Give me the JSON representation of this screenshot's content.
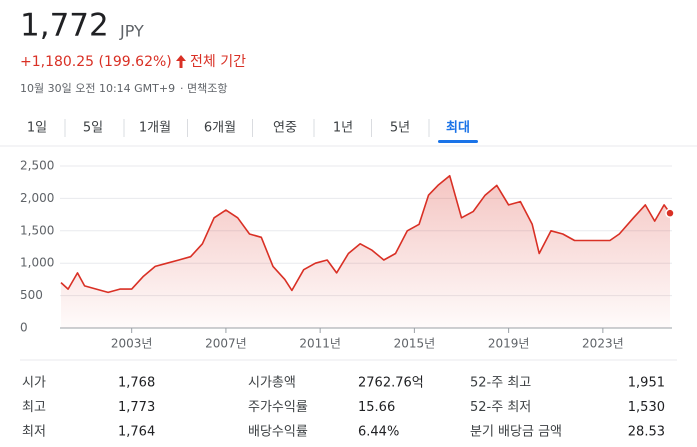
{
  "header": {
    "price": "1,772",
    "currency": "JPY",
    "change": "+1,180.25 (199.62%)",
    "period": "전체 기간",
    "timestamp": "10월 30일 오전 10:14 GMT+9",
    "disclaimer": "· 면책조항"
  },
  "tabs": {
    "items": [
      "1일",
      "5일",
      "1개월",
      "6개월",
      "연중",
      "1년",
      "5년",
      "최대"
    ],
    "selected": 7
  },
  "chart_data": {
    "type": "line",
    "color": "#d93025",
    "grid": true,
    "x": [
      2000.0,
      2000.3,
      2000.7,
      2001.0,
      2001.5,
      2002.0,
      2002.5,
      2003.0,
      2003.5,
      2004.0,
      2004.5,
      2005.0,
      2005.5,
      2006.0,
      2006.5,
      2007.0,
      2007.5,
      2008.0,
      2008.5,
      2009.0,
      2009.5,
      2009.8,
      2010.3,
      2010.8,
      2011.3,
      2011.7,
      2012.2,
      2012.7,
      2013.2,
      2013.7,
      2014.2,
      2014.7,
      2015.2,
      2015.6,
      2016.0,
      2016.5,
      2017.0,
      2017.5,
      2018.0,
      2018.5,
      2019.0,
      2019.5,
      2020.0,
      2020.3,
      2020.8,
      2021.3,
      2021.8,
      2022.3,
      2022.8,
      2023.3,
      2023.7,
      2024.3,
      2024.8,
      2025.2,
      2025.6,
      2025.85
    ],
    "values": [
      700,
      600,
      850,
      650,
      600,
      550,
      600,
      600,
      800,
      950,
      1000,
      1050,
      1100,
      1300,
      1700,
      1820,
      1700,
      1450,
      1400,
      950,
      750,
      580,
      900,
      1000,
      1050,
      850,
      1150,
      1300,
      1200,
      1050,
      1150,
      1500,
      1600,
      2050,
      2200,
      2350,
      1700,
      1800,
      2050,
      2200,
      1900,
      1950,
      1600,
      1150,
      1500,
      1450,
      1350,
      1350,
      1350,
      1350,
      1450,
      1700,
      1900,
      1650,
      1900,
      1772
    ],
    "xlim": [
      2000,
      2025.85
    ],
    "ylim": [
      0,
      2500
    ],
    "yticks": [
      0,
      500,
      {
        "value": 1000,
        "label": "1,000"
      },
      {
        "value": 1500,
        "label": "1,500"
      },
      {
        "value": 2000,
        "label": "2,000"
      },
      {
        "value": 2500,
        "label": "2,500"
      }
    ],
    "xticks": [
      {
        "value": 2003,
        "label": "2003년"
      },
      {
        "value": 2007,
        "label": "2007년"
      },
      {
        "value": 2011,
        "label": "2011년"
      },
      {
        "value": 2015,
        "label": "2015년"
      },
      {
        "value": 2019,
        "label": "2019년"
      },
      {
        "value": 2023,
        "label": "2023년"
      }
    ]
  },
  "stats": {
    "rows": [
      [
        "시가",
        "1,768",
        "시가총액",
        "2762.76억",
        "52-주 최고",
        "1,951"
      ],
      [
        "최고",
        "1,773",
        "주가수익률",
        "15.66",
        "52-주 최저",
        "1,530"
      ],
      [
        "최저",
        "1,764",
        "배당수익률",
        "6.44%",
        "분기 배당금 금액",
        "28.53"
      ]
    ]
  }
}
